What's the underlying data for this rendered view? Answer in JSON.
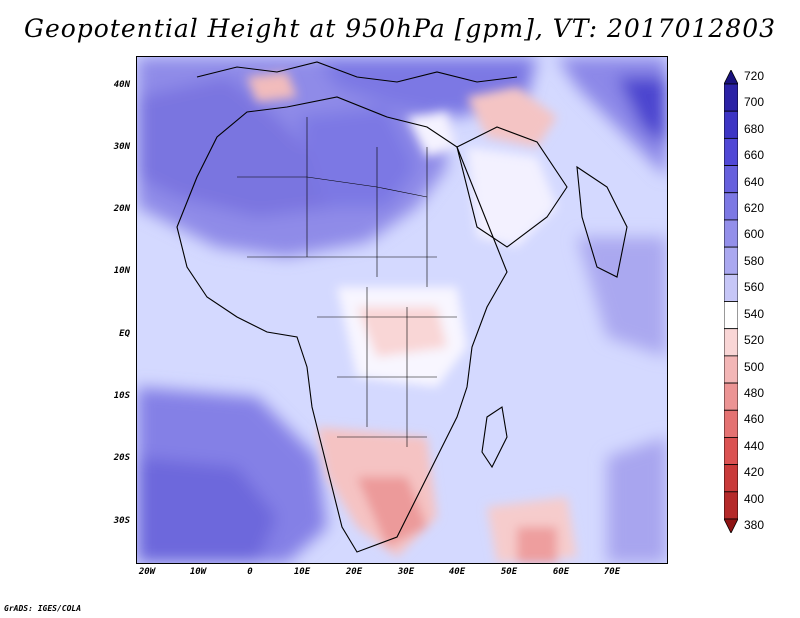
{
  "title": "Geopotential Height at 950hPa [gpm], VT: 2017012803",
  "credit": "GrADS: IGES/COLA",
  "map": {
    "lat_ticks": [
      "40N",
      "30N",
      "20N",
      "10N",
      "EQ",
      "10S",
      "20S",
      "30S"
    ],
    "lon_ticks": [
      "20W",
      "10W",
      "0",
      "10E",
      "20E",
      "30E",
      "40E",
      "50E",
      "60E",
      "70E"
    ],
    "lon_range": [
      -22,
      80
    ],
    "lat_range": [
      -36,
      44
    ]
  },
  "colorbar": {
    "levels": [
      720,
      700,
      680,
      660,
      640,
      620,
      600,
      580,
      560,
      540,
      520,
      500,
      480,
      460,
      440,
      420,
      400,
      380
    ],
    "colors": [
      "#1a127e",
      "#2b22a6",
      "#3d35c4",
      "#5048d6",
      "#6660dd",
      "#7c78e4",
      "#938fea",
      "#aaa8f0",
      "#c6c6f7",
      "#ffffff",
      "#f9d6d6",
      "#f3b6b6",
      "#ec9494",
      "#e47272",
      "#db5252",
      "#c93a3a",
      "#b52a2a",
      "#8e1414"
    ]
  }
}
